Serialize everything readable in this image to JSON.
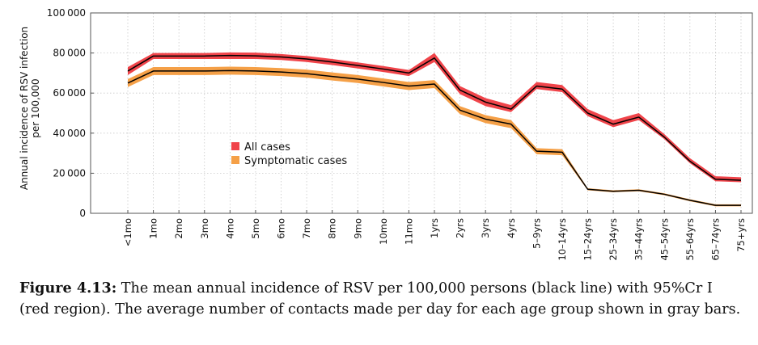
{
  "chart_data": {
    "type": "area",
    "ylabel": [
      "Annual incidence of RSV infection",
      "per 100,000"
    ],
    "yticks": [
      "0",
      "20000",
      "40000",
      "60000",
      "80000",
      "100000"
    ],
    "ylim": [
      0,
      100000
    ],
    "grid": true,
    "legend_position": "center-left",
    "categories": [
      "<1mo",
      "1mo",
      "2mo",
      "3mo",
      "4mo",
      "5mo",
      "6mo",
      "7mo",
      "8mo",
      "9mo",
      "10mo",
      "11mo",
      "1yrs",
      "2yrs",
      "3yrs",
      "4yrs",
      "5–9yrs",
      "10–14yrs",
      "15–24yrs",
      "25–34yrs",
      "35–44yrs",
      "45–54yrs",
      "55–64yrs",
      "65–74yrs",
      "75+yrs"
    ],
    "series": [
      {
        "name": "All cases",
        "color": "#f0444a",
        "mean": [
          71000,
          78500,
          78500,
          78500,
          78800,
          78600,
          78000,
          77000,
          75500,
          73800,
          72000,
          70000,
          77500,
          61500,
          55500,
          52000,
          63500,
          62000,
          50000,
          44500,
          48000,
          38000,
          26000,
          17000,
          16500
        ],
        "lower": [
          69000,
          77000,
          77000,
          77000,
          77000,
          77000,
          76500,
          75500,
          74000,
          72300,
          70500,
          68500,
          75500,
          59500,
          53500,
          50500,
          62000,
          60500,
          48500,
          43000,
          46500,
          37000,
          25000,
          16000,
          15500
        ],
        "upper": [
          73000,
          80000,
          80000,
          80000,
          80300,
          80200,
          79500,
          78500,
          77000,
          75300,
          73500,
          71500,
          80000,
          63500,
          57500,
          54000,
          65500,
          64000,
          52000,
          46500,
          50000,
          39500,
          27500,
          18500,
          18000
        ]
      },
      {
        "name": "Symptomatic cases",
        "color": "#f5a047",
        "mean": [
          65000,
          71000,
          71000,
          71000,
          71200,
          71000,
          70500,
          69700,
          68300,
          67000,
          65300,
          63500,
          64500,
          51500,
          47000,
          44500,
          31000,
          30500,
          12000,
          11000,
          11500,
          9500,
          6500,
          4000,
          4000
        ],
        "lower": [
          63000,
          69000,
          69000,
          69000,
          69200,
          69000,
          68500,
          67700,
          66300,
          65000,
          63300,
          61500,
          62500,
          49500,
          45000,
          42500,
          29500,
          29000,
          11500,
          10500,
          11000,
          9000,
          6000,
          3500,
          3500
        ],
        "upper": [
          67000,
          73000,
          73000,
          73000,
          73200,
          73000,
          72500,
          71700,
          70300,
          69000,
          67300,
          65500,
          66500,
          53500,
          49000,
          46500,
          32500,
          32000,
          12500,
          11500,
          12000,
          10000,
          7000,
          4500,
          4500
        ]
      }
    ]
  },
  "caption": {
    "label": "Figure 4.13:",
    "text": "The mean annual incidence of RSV per 100,000 persons (black line) with 95%Cr I (red region). The average number of contacts made per day for each age group shown in gray bars."
  }
}
